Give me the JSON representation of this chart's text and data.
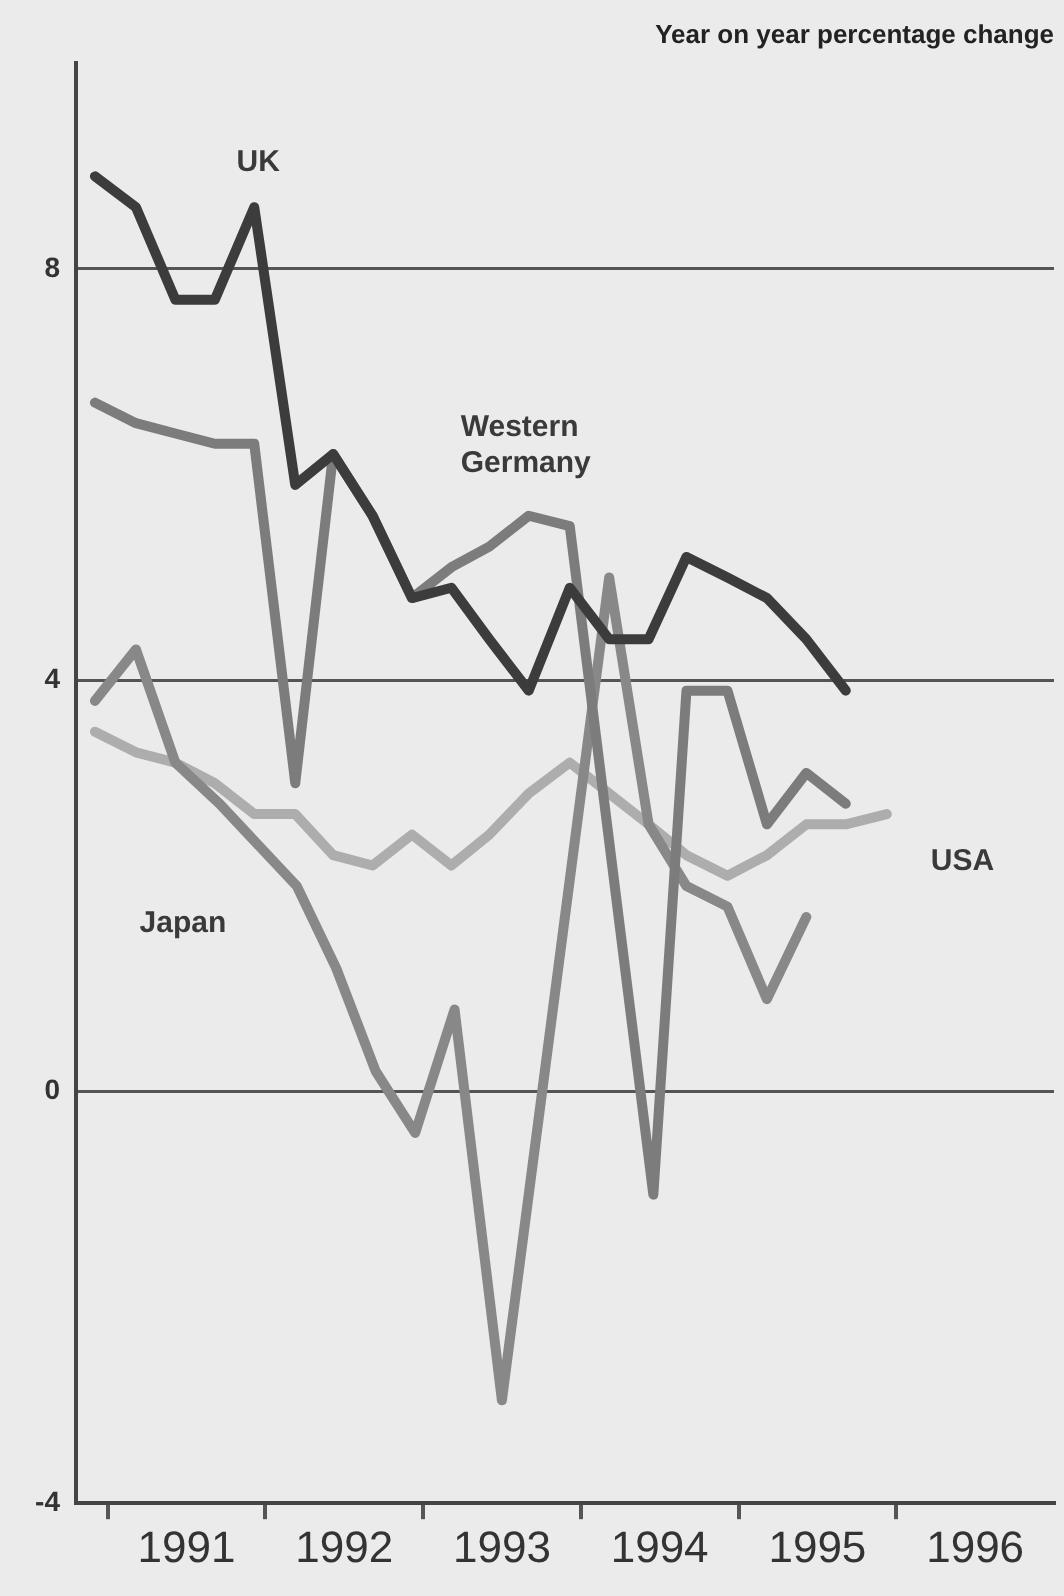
{
  "chart_data": {
    "type": "line",
    "title": "Year on year percentage change",
    "xlim": [
      1990.8,
      1997.0
    ],
    "xticks": [
      {
        "value": 1991,
        "label": null
      },
      {
        "value": 1991.5,
        "label": "1991"
      },
      {
        "value": 1992,
        "label": null
      },
      {
        "value": 1992.5,
        "label": "1992"
      },
      {
        "value": 1993,
        "label": null
      },
      {
        "value": 1993.5,
        "label": "1993"
      },
      {
        "value": 1994,
        "label": null
      },
      {
        "value": 1994.5,
        "label": "1994"
      },
      {
        "value": 1995,
        "label": null
      },
      {
        "value": 1995.5,
        "label": "1995"
      },
      {
        "value": 1996,
        "label": null
      },
      {
        "value": 1996.5,
        "label": "1996"
      }
    ],
    "ylim": [
      -4,
      10
    ],
    "yticks": [
      -4,
      0,
      4,
      8
    ],
    "grid": "y",
    "legend": false,
    "marker": "none",
    "line_style": "solid",
    "series": [
      {
        "name": "UK",
        "color": "#3c3c3c",
        "x": [
          1990.92,
          1991.18,
          1991.43,
          1991.68,
          1991.93,
          1992.19,
          1992.43,
          1992.68,
          1992.93,
          1993.18,
          1993.42,
          1993.67,
          1993.93,
          1994.18,
          1994.43,
          1994.67,
          1994.93,
          1995.18,
          1995.43,
          1995.68
        ],
        "values": [
          8.9,
          8.6,
          7.7,
          7.7,
          8.6,
          5.9,
          6.2,
          5.6,
          4.8,
          4.9,
          4.4,
          3.9,
          4.9,
          4.4,
          4.4,
          5.2,
          5.0,
          4.8,
          4.4,
          3.9
        ]
      },
      {
        "name": "Western Germany",
        "color": "#7c7c7c",
        "x": [
          1990.92,
          1991.18,
          1991.43,
          1991.68,
          1991.93,
          1992.19,
          1992.43,
          1992.68,
          1992.93,
          1993.18,
          1993.42,
          1993.67,
          1993.93,
          1994.46,
          1994.67,
          1994.93,
          1995.18,
          1995.43,
          1995.68
        ],
        "values": [
          6.7,
          6.5,
          6.4,
          6.3,
          6.3,
          3.0,
          6.2,
          5.6,
          4.8,
          5.1,
          5.3,
          5.6,
          5.5,
          -1.0,
          3.9,
          3.9,
          2.6,
          3.1,
          2.8
        ]
      },
      {
        "name": "Japan",
        "color": "#888888",
        "x": [
          1990.92,
          1991.18,
          1991.43,
          1991.71,
          1992.2,
          1992.45,
          1992.7,
          1992.95,
          1993.2,
          1993.5,
          1994.18,
          1994.43,
          1994.67,
          1994.93,
          1995.18,
          1995.43
        ],
        "values": [
          3.8,
          4.3,
          3.2,
          2.8,
          2.0,
          1.2,
          0.2,
          -0.4,
          0.8,
          -3.0,
          5.0,
          2.6,
          2.0,
          1.8,
          0.9,
          1.7
        ]
      },
      {
        "name": "USA",
        "color": "#adadad",
        "x": [
          1990.92,
          1991.18,
          1991.43,
          1991.68,
          1991.93,
          1992.19,
          1992.43,
          1992.68,
          1992.93,
          1993.18,
          1993.42,
          1993.67,
          1993.93,
          1994.18,
          1994.43,
          1994.67,
          1994.93,
          1995.18,
          1995.43,
          1995.68,
          1995.94
        ],
        "values": [
          3.5,
          3.3,
          3.2,
          3.0,
          2.7,
          2.7,
          2.3,
          2.2,
          2.5,
          2.2,
          2.5,
          2.9,
          3.2,
          2.9,
          2.6,
          2.3,
          2.1,
          2.3,
          2.6,
          2.6,
          2.7
        ]
      }
    ]
  }
}
